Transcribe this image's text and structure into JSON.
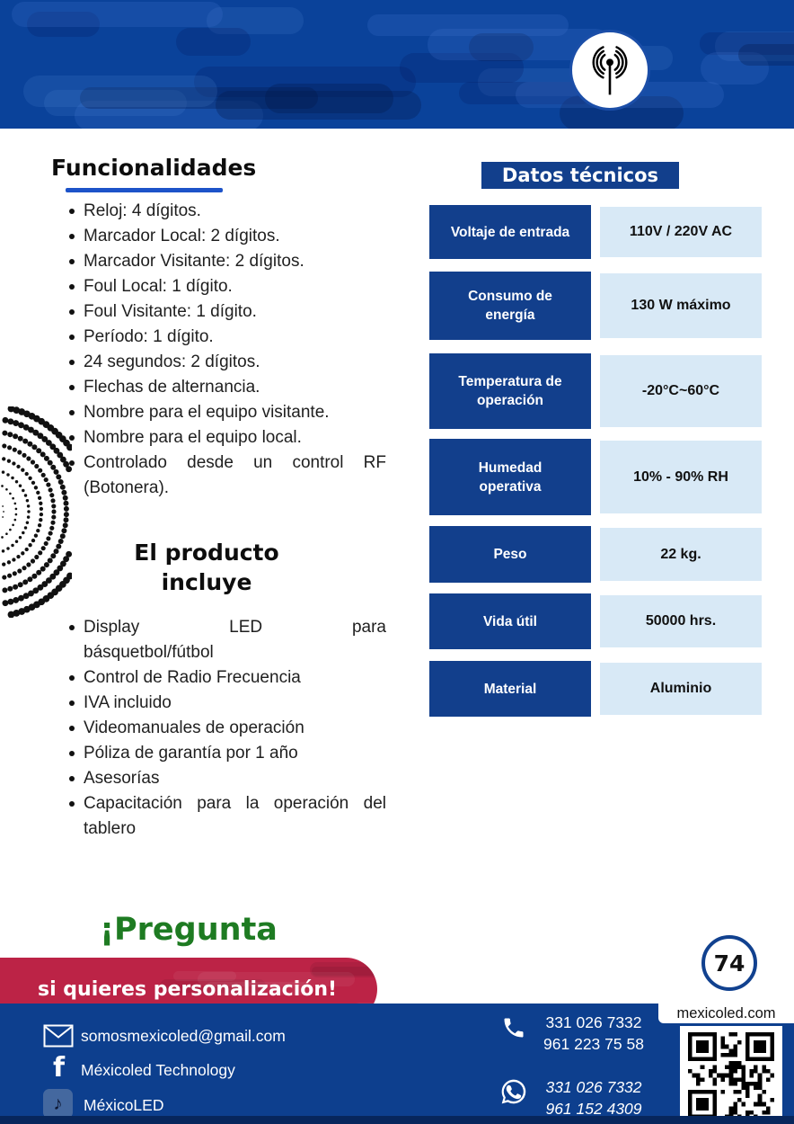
{
  "functionalities": {
    "title": "Funcionalidades",
    "items": [
      "Reloj: 4 dígitos.",
      "Marcador Local: 2 dígitos.",
      "Marcador Visitante: 2 dígitos.",
      "Foul Local: 1 dígito.",
      "Foul Visitante: 1 dígito.",
      "Período: 1 dígito.",
      "24 segundos: 2 dígitos.",
      "Flechas de alternancia.",
      "Nombre para el equipo visitante.",
      "Nombre para el equipo local.",
      "Controlado desde un control RF (Botonera)."
    ]
  },
  "product_includes": {
    "title_line1": "El producto",
    "title_line2": "incluye",
    "display_item_line1": "Display LED para",
    "display_item_line2": "básquetbol/fútbol",
    "items": [
      "Control de Radio Frecuencia",
      "IVA incluido",
      "Videomanuales de operación",
      "Póliza de garantía por 1 año",
      "Asesorías",
      "Capacitación para la operación del tablero"
    ]
  },
  "tech_specs": {
    "title": "Datos técnicos",
    "rows": [
      {
        "label": "Voltaje de entrada",
        "value": "110V / 220V AC"
      },
      {
        "label": "Consumo de\nenergía",
        "value": "130 W máximo"
      },
      {
        "label": "Temperatura de\noperación",
        "value": "-20°C~60°C"
      },
      {
        "label": "Humedad\noperativa",
        "value": "10% - 90% RH"
      },
      {
        "label": "Peso",
        "value": "22 kg."
      },
      {
        "label": "Vida útil",
        "value": "50000 hrs."
      },
      {
        "label": "Material",
        "value": "Aluminio"
      }
    ]
  },
  "cta": {
    "headline": "¡Pregunta",
    "subline": "si quieres personalización!"
  },
  "page_number": "74",
  "footer": {
    "email": "somosmexicoled@gmail.com",
    "facebook": "Méxicoled Technology",
    "tiktok": "MéxicoLED",
    "phone": {
      "line1": "331 026 7332",
      "line2": "961 223 75 58"
    },
    "whatsapp": {
      "line1": "331 026 7332",
      "line2": "961 152 4309"
    },
    "website": "mexicoled.com"
  },
  "icons": {
    "logo": "rf-antenna",
    "music_note": "♪"
  },
  "colors": {
    "primary_blue": "#0a429a",
    "table_blue": "#123f8c",
    "light_blue": "#d8e9f6",
    "accent_underline": "#1d53c9",
    "banner_red": "#bc2346",
    "headline_green": "#1e7b22",
    "footer_blue": "#0d3f8e"
  }
}
